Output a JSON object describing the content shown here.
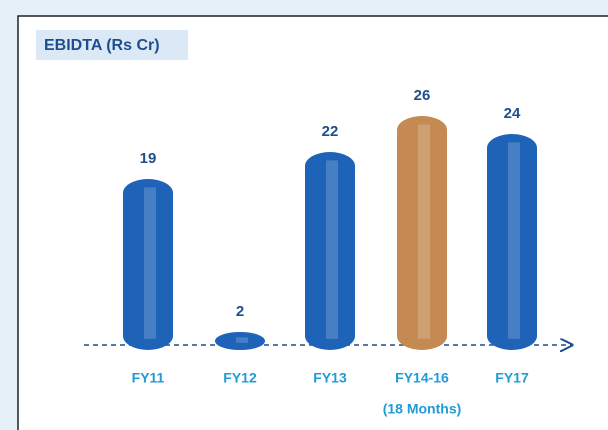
{
  "chart_data": {
    "type": "bar",
    "title": "EBIDTA (Rs Cr)",
    "categories": [
      "FY11",
      "FY12",
      "FY13",
      "FY14-16",
      "FY17"
    ],
    "values": [
      19,
      2,
      22,
      26,
      24
    ],
    "colors": [
      "#1f63b8",
      "#1f63b8",
      "#1f63b8",
      "#c48a52",
      "#1f63b8"
    ],
    "annotations": [
      "(18 Months)"
    ]
  }
}
